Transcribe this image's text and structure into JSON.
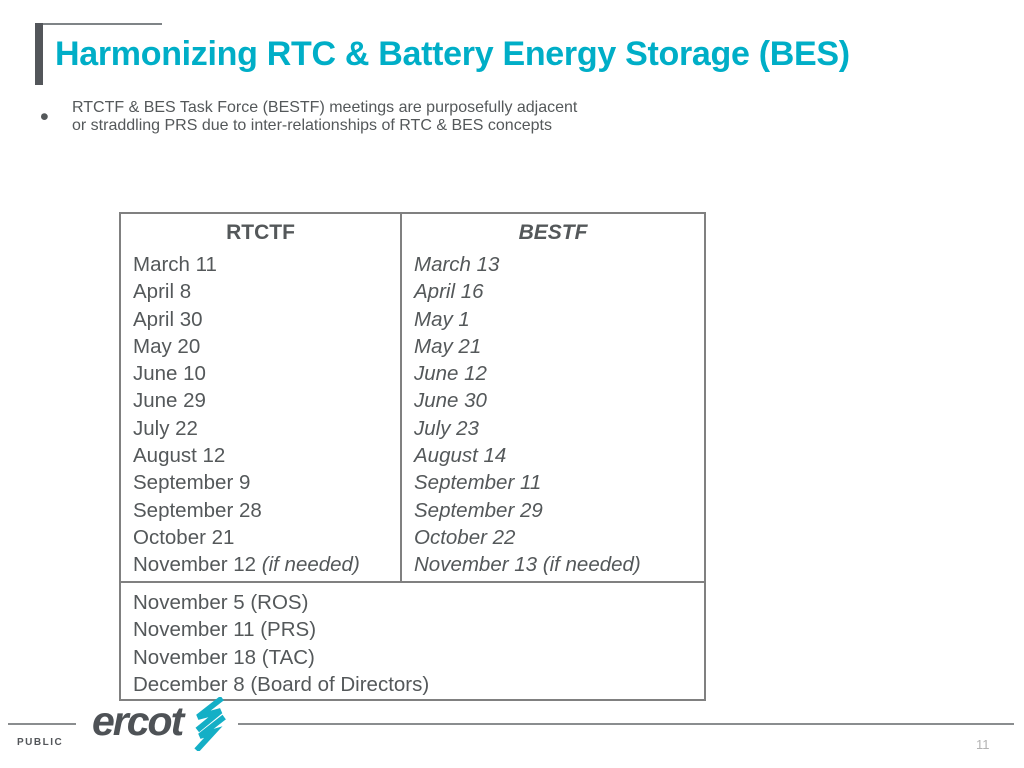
{
  "slide": {
    "title": "Harmonizing RTC & Battery Energy Storage (BES)",
    "bullet": {
      "marker": "•",
      "lines": [
        "RTCTF & BES Task Force (BESTF) meetings are purposefully adjacent",
        "or straddling PRS due to inter-relationships of RTC & BES concepts"
      ]
    }
  },
  "table": {
    "left": {
      "header": "RTCTF",
      "rows": [
        "March 11",
        "April 8",
        "April 30",
        "May 20",
        "June 10",
        "June 29",
        "July 22",
        "August 12",
        "September 9",
        "September 28",
        "October 21"
      ],
      "last_row": {
        "normal": "November 12 ",
        "italic": "(if needed)"
      }
    },
    "right": {
      "header": "BESTF",
      "rows": [
        "March 13",
        "April 16",
        "May 1",
        "May 21",
        "June 12",
        "June 30",
        "July 23",
        "August 14",
        "September 11",
        "September 29",
        "October 22",
        "November 13 (if needed)"
      ]
    },
    "bottom_rows": [
      "November 5 (ROS)",
      "November 11 (PRS)",
      "November 18 (TAC)",
      "December 8 (Board of Directors)"
    ]
  },
  "footer": {
    "logo_text": "ercot",
    "classification": "PUBLIC",
    "page_number": "11"
  },
  "colors": {
    "accent_teal": "#00AEC7",
    "body_text_gray": "#54585A",
    "table_border_gray": "#808080",
    "accent_bar_gray": "#53565A",
    "page_number_gray": "#B3B3B3"
  }
}
